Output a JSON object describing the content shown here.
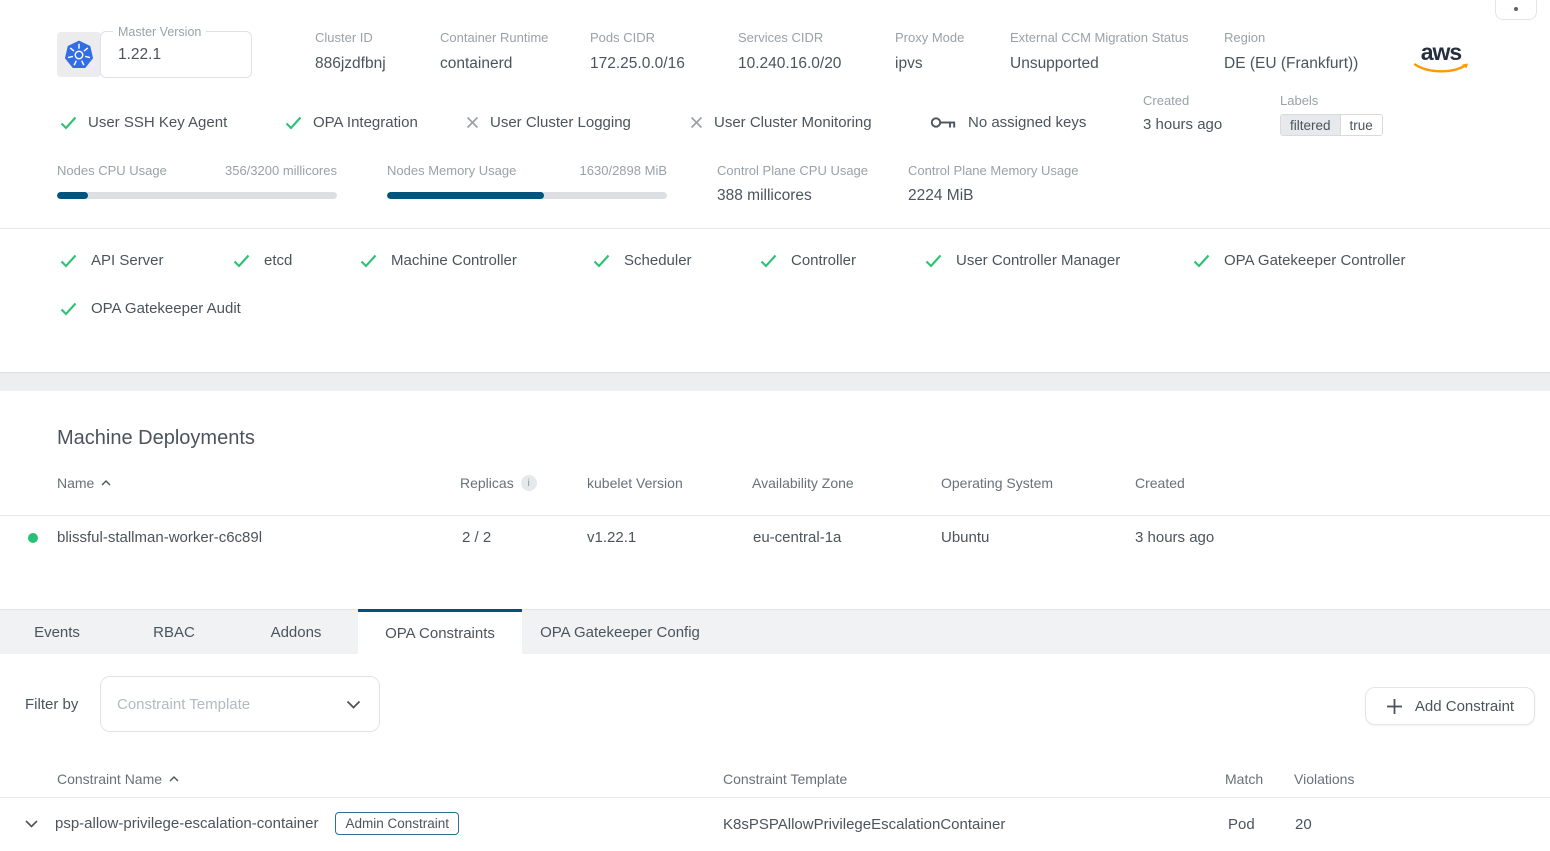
{
  "cluster": {
    "master_version_label": "Master Version",
    "master_version": "1.22.1",
    "provider": "aws",
    "info": [
      {
        "label": "Cluster ID",
        "value": "886jzdfbnj"
      },
      {
        "label": "Container Runtime",
        "value": "containerd"
      },
      {
        "label": "Pods CIDR",
        "value": "172.25.0.0/16"
      },
      {
        "label": "Services CIDR",
        "value": "10.240.16.0/20"
      },
      {
        "label": "Proxy Mode",
        "value": "ipvs"
      },
      {
        "label": "External CCM Migration Status",
        "value": "Unsupported"
      },
      {
        "label": "Region",
        "value": "DE (EU (Frankfurt))"
      }
    ]
  },
  "features": {
    "items": [
      {
        "label": "User SSH Key Agent",
        "enabled": true
      },
      {
        "label": "OPA Integration",
        "enabled": true
      },
      {
        "label": "User Cluster Logging",
        "enabled": false
      },
      {
        "label": "User Cluster Monitoring",
        "enabled": false
      }
    ],
    "ssh_keys": "No assigned keys",
    "created_label": "Created",
    "created_value": "3 hours ago",
    "labels_label": "Labels",
    "label_chip": {
      "key": "filtered",
      "value": "true"
    }
  },
  "usage": {
    "bars": [
      {
        "label": "Nodes CPU Usage",
        "value": "356/3200 millicores",
        "percent": 11
      },
      {
        "label": "Nodes Memory Usage",
        "value": "1630/2898 MiB",
        "percent": 56
      }
    ],
    "stats": [
      {
        "label": "Control Plane CPU Usage",
        "value": "388 millicores"
      },
      {
        "label": "Control Plane Memory Usage",
        "value": "2224 MiB"
      }
    ]
  },
  "health": {
    "items": [
      "API Server",
      "etcd",
      "Machine Controller",
      "Scheduler",
      "Controller",
      "User Controller Manager",
      "OPA Gatekeeper Controller",
      "OPA Gatekeeper Audit"
    ]
  },
  "machine_deployments": {
    "title": "Machine Deployments",
    "columns": [
      "Name",
      "Replicas",
      "kubelet Version",
      "Availability Zone",
      "Operating System",
      "Created"
    ],
    "rows": [
      {
        "name": "blissful-stallman-worker-c6c89l",
        "replicas": "2 / 2",
        "kubelet_version": "v1.22.1",
        "availability_zone": "eu-central-1a",
        "operating_system": "Ubuntu",
        "created": "3 hours ago",
        "status": "healthy"
      }
    ]
  },
  "tabs": {
    "items": [
      "Events",
      "RBAC",
      "Addons",
      "OPA Constraints",
      "OPA Gatekeeper Config"
    ],
    "active": "OPA Constraints"
  },
  "constraints": {
    "filter_label": "Filter by",
    "filter_placeholder": "Constraint Template",
    "add_button": "Add Constraint",
    "columns": [
      "Constraint Name",
      "Constraint Template",
      "Match",
      "Violations"
    ],
    "rows": [
      {
        "name": "psp-allow-privilege-escalation-container",
        "badge": "Admin Constraint",
        "template": "K8sPSPAllowPrivilegeEscalationContainer",
        "match": "Pod",
        "violations": "20"
      }
    ]
  },
  "colors": {
    "accent": "#00517d",
    "green": "#2bc275",
    "provider_orange": "#ff9900"
  }
}
